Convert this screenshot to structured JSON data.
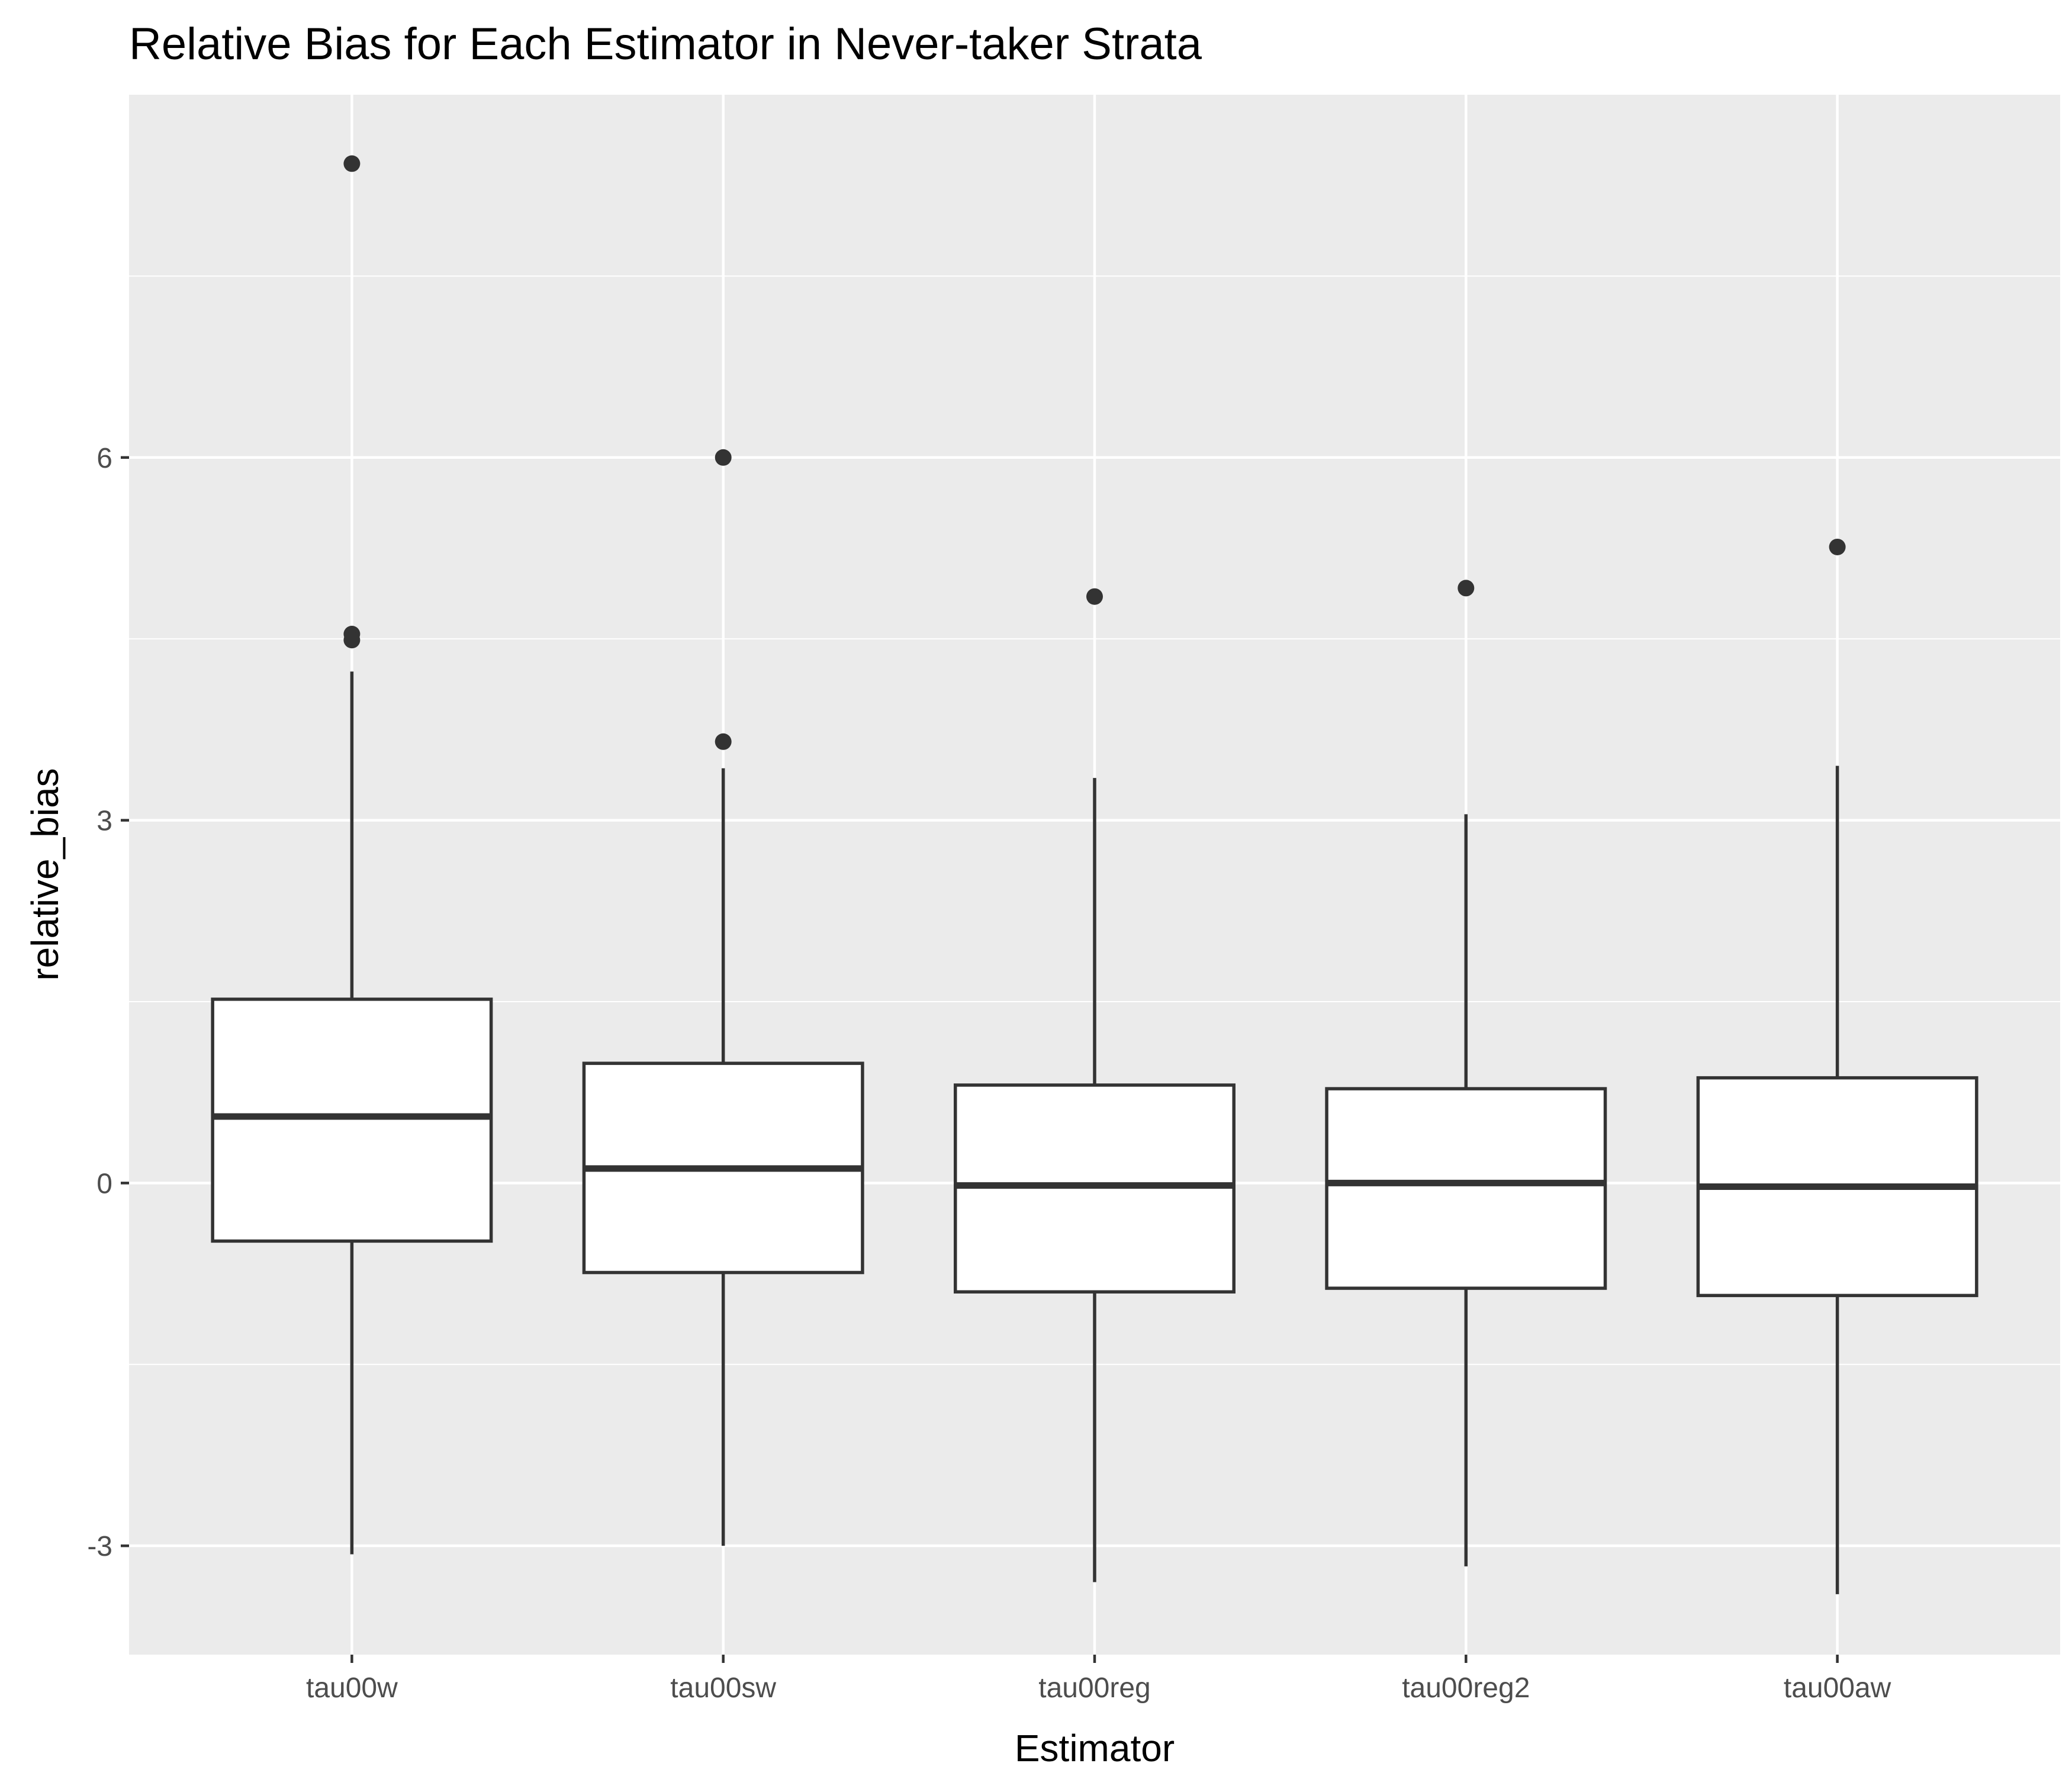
{
  "chart_data": {
    "type": "boxplot",
    "title": "Relative Bias for Each Estimator in Never-taker Strata",
    "xlabel": "Estimator",
    "ylabel": "relative_bias",
    "ylim": [
      -3.9,
      9.0
    ],
    "yticks": [
      -3,
      0,
      3,
      6
    ],
    "ytick_labels": [
      "-3",
      "0",
      "3",
      "6"
    ],
    "grid": true,
    "colors": {
      "panel": "#EBEBEB",
      "grid_major": "#FFFFFF",
      "box_fill": "#FFFFFF",
      "box_line": "#333333",
      "tick": "#333333",
      "tick_text": "#4D4D4D",
      "title": "#000000"
    },
    "categories": [
      "tau00w",
      "tau00sw",
      "tau00reg",
      "tau00reg2",
      "tau00aw"
    ],
    "boxes": [
      {
        "category": "tau00w",
        "whisker_low": -3.07,
        "q1": -0.48,
        "median": 0.55,
        "q3": 1.52,
        "whisker_high": 4.23,
        "outliers": [
          8.43,
          4.54,
          4.49
        ]
      },
      {
        "category": "tau00sw",
        "whisker_low": -3.0,
        "q1": -0.74,
        "median": 0.12,
        "q3": 0.99,
        "whisker_high": 3.43,
        "outliers": [
          6.0,
          3.65
        ]
      },
      {
        "category": "tau00reg",
        "whisker_low": -3.3,
        "q1": -0.9,
        "median": -0.02,
        "q3": 0.81,
        "whisker_high": 3.35,
        "outliers": [
          4.85
        ]
      },
      {
        "category": "tau00reg2",
        "whisker_low": -3.17,
        "q1": -0.87,
        "median": 0.0,
        "q3": 0.78,
        "whisker_high": 3.05,
        "outliers": [
          4.92
        ]
      },
      {
        "category": "tau00aw",
        "whisker_low": -3.4,
        "q1": -0.93,
        "median": -0.03,
        "q3": 0.87,
        "whisker_high": 3.45,
        "outliers": [
          5.26
        ]
      }
    ]
  }
}
